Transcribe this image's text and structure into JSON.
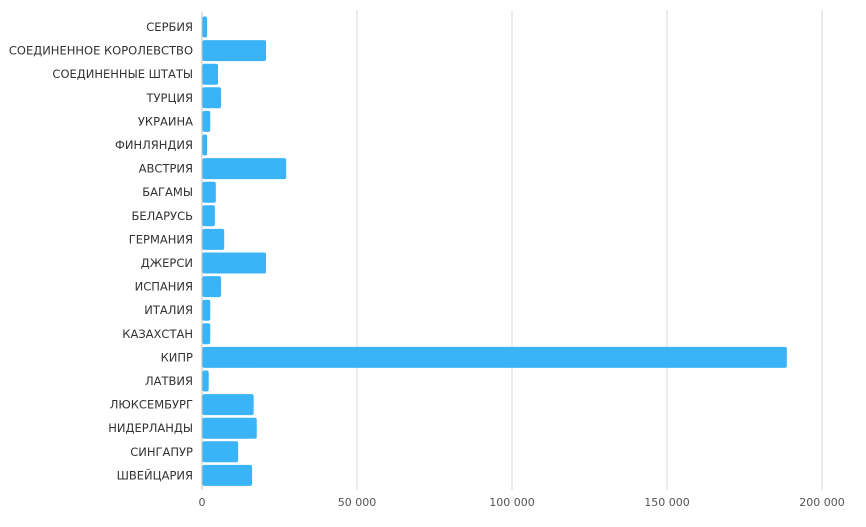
{
  "chart_data": {
    "type": "bar",
    "orientation": "horizontal",
    "title": "",
    "xlabel": "",
    "ylabel": "",
    "categories": [
      "СЕРБИЯ",
      "СОЕДИНЕННОЕ КОРОЛЕВСТВО",
      "СОЕДИНЕННЫЕ ШТАТЫ",
      "ТУРЦИЯ",
      "УКРАИНА",
      "ФИНЛЯНДИЯ",
      "АВСТРИЯ",
      "БАГАМЫ",
      "БЕЛАРУСЬ",
      "ГЕРМАНИЯ",
      "ДЖЕРСИ",
      "ИСПАНИЯ",
      "ИТАЛИЯ",
      "КАЗАХСТАН",
      "КИПР",
      "ЛАТВИЯ",
      "ЛЮКСЕМБУРГ",
      "НИДЕРЛАНДЫ",
      "СИНГАПУР",
      "ШВЕЙЦАРИЯ"
    ],
    "values": [
      1500,
      20500,
      5000,
      6000,
      2500,
      1500,
      27000,
      4300,
      4000,
      7000,
      20500,
      6000,
      2500,
      2500,
      188500,
      2000,
      16500,
      17500,
      11500,
      16000
    ],
    "xlim": [
      0,
      200000
    ],
    "xticks": [
      0,
      50000,
      100000,
      150000,
      200000
    ],
    "xtick_labels": [
      "0",
      "50 000",
      "100 000",
      "150 000",
      "200 000"
    ],
    "grid": "vertical",
    "legend": "none",
    "bar_color": "#3bb4f7"
  }
}
